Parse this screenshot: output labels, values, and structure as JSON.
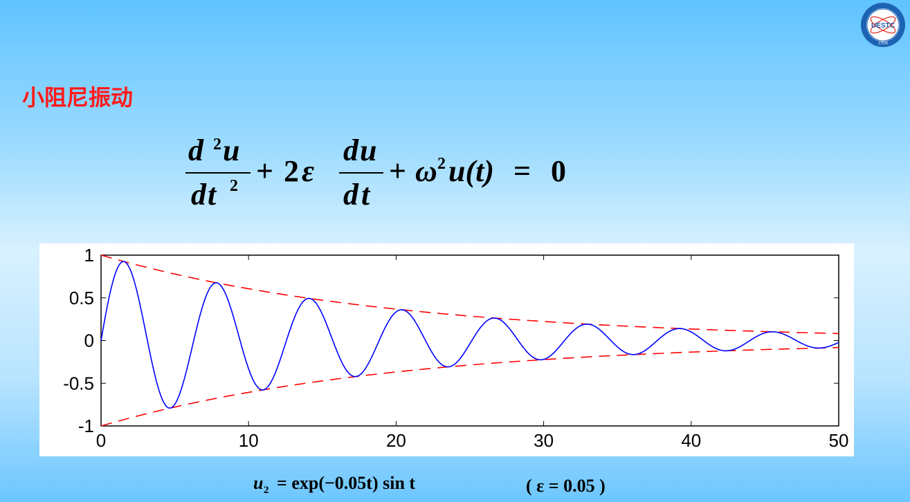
{
  "slide": {
    "title": "小阻尼振动",
    "equation": {
      "d": "d",
      "u": "u",
      "t": "t",
      "sq": "2",
      "plus": "+",
      "two": "2",
      "epsilon": "ε",
      "omega": "ω",
      "ut": "u(t)",
      "equals": "=",
      "zero": "0"
    },
    "caption": {
      "u": "u",
      "sub": "2",
      "formula": "= exp(−0.05t) sin t",
      "param": "( ε = 0.05 )"
    },
    "logo_text": "UESTC",
    "logo_year": "1956"
  },
  "colors": {
    "title": "#ff1a1a",
    "curve": "#0000ff",
    "envelope": "#ff0000",
    "axis": "#000000"
  },
  "chart_data": {
    "type": "line",
    "title": "",
    "xlabel": "",
    "ylabel": "",
    "xlim": [
      0,
      50
    ],
    "ylim": [
      -1,
      1
    ],
    "xticks": [
      0,
      10,
      20,
      30,
      40,
      50
    ],
    "xtick_labels": [
      "0",
      "10",
      "20",
      "30",
      "40",
      "50"
    ],
    "yticks": [
      1,
      0.5,
      0,
      -0.5,
      -1
    ],
    "ytick_labels": [
      "1",
      "0.5",
      "0",
      "-0.5",
      "-1"
    ],
    "grid": false,
    "series": [
      {
        "style": "solid",
        "color": "#0000ff",
        "function": "exp(-0.05t)·sin(t)",
        "x": [
          0,
          1.57,
          4.71,
          7.85,
          10.99,
          14.14,
          17.28,
          20.42,
          23.56,
          26.7,
          29.85,
          32.99,
          36.13,
          39.27,
          42.41,
          45.55,
          48.69,
          50
        ],
        "y": [
          0,
          0.92,
          -0.79,
          0.68,
          -0.58,
          0.49,
          -0.42,
          0.36,
          -0.31,
          0.26,
          -0.23,
          0.19,
          -0.16,
          0.14,
          -0.12,
          0.1,
          -0.09,
          -0.07
        ]
      },
      {
        "style": "dashed",
        "color": "#ff0000",
        "function": "exp(-0.05t)",
        "x": [
          0,
          10,
          20,
          30,
          40,
          50
        ],
        "y": [
          1,
          0.61,
          0.37,
          0.22,
          0.14,
          0.08
        ]
      },
      {
        "style": "dashed",
        "color": "#ff0000",
        "function": "-exp(-0.05t)",
        "x": [
          0,
          10,
          20,
          30,
          40,
          50
        ],
        "y": [
          -1,
          -0.61,
          -0.37,
          -0.22,
          -0.14,
          -0.08
        ]
      }
    ],
    "legend": "none"
  }
}
